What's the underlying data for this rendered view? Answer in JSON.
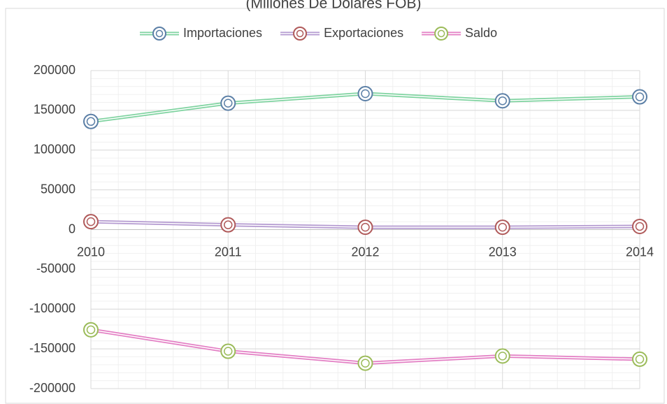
{
  "chart_data": {
    "type": "line",
    "title": "(Millones De Dólares FOB)",
    "categories": [
      "2010",
      "2011",
      "2012",
      "2013",
      "2014"
    ],
    "series": [
      {
        "name": "Importaciones",
        "color": "#7fd3a0",
        "marker_color": "#5b7fa6",
        "values": [
          136000,
          159000,
          171000,
          162000,
          167000
        ]
      },
      {
        "name": "Exportaciones",
        "color": "#b49ad0",
        "marker_color": "#b05a5a",
        "values": [
          10000,
          6000,
          3000,
          3000,
          4000
        ]
      },
      {
        "name": "Saldo",
        "color": "#e37fc4",
        "marker_color": "#9bbb59",
        "values": [
          -126000,
          -153000,
          -168000,
          -159000,
          -163000
        ]
      }
    ],
    "ylim": [
      -200000,
      200000
    ],
    "yticks": [
      -200000,
      -150000,
      -100000,
      -50000,
      0,
      50000,
      100000,
      150000,
      200000
    ],
    "grid": true,
    "legend": "top"
  }
}
